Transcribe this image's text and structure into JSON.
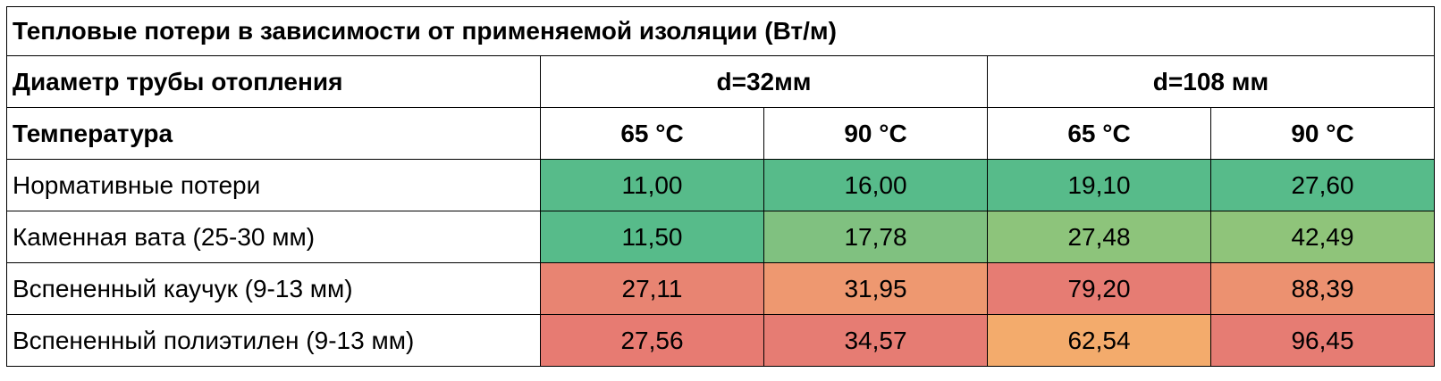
{
  "table": {
    "title": "Тепловые потери в зависимости от применяемой изоляции (Вт/м)",
    "diameter_label": "Диаметр трубы отопления",
    "diameters": [
      "d=32мм",
      "d=108 мм"
    ],
    "temperature_label": "Температура",
    "temperatures": [
      "65 °C",
      "90 °C",
      "65 °C",
      "90 °C"
    ],
    "rows": [
      {
        "name": "Нормативные потери",
        "values": [
          "11,00",
          "16,00",
          "19,10",
          "27,60"
        ],
        "colors": [
          "#57bb8a",
          "#57bb8a",
          "#57bb8a",
          "#57bb8a"
        ]
      },
      {
        "name": "Каменная вата (25-30 мм)",
        "values": [
          "11,50",
          "17,78",
          "27,48",
          "42,49"
        ],
        "colors": [
          "#57bb8a",
          "#80c180",
          "#8dc47b",
          "#8fc47a"
        ]
      },
      {
        "name": "Вспененный каучук (9-13 мм)",
        "values": [
          "27,11",
          "31,95",
          "79,20",
          "88,39"
        ],
        "colors": [
          "#e88472",
          "#ee9870",
          "#e67c73",
          "#ec9170"
        ]
      },
      {
        "name": "Вспененный полиэтилен (9-13 мм)",
        "values": [
          "27,56",
          "34,57",
          "62,54",
          "96,45"
        ],
        "colors": [
          "#e77b72",
          "#e67c73",
          "#f3ab6c",
          "#e67c73"
        ]
      }
    ]
  }
}
